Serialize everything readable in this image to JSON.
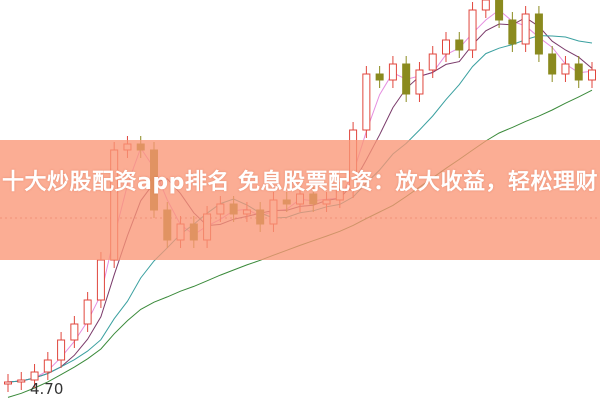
{
  "title": "十大炒股配资app排名 免息股票配资：放大收益，轻松理财",
  "chart_data": {
    "type": "candlestick",
    "price_tick_label": "4.70",
    "ylim": [
      4.68,
      6.65
    ],
    "up_color": "#e0463c",
    "down_color": "#8a8a1e",
    "ma_colors": [
      "#e58fe0",
      "#7a3a6a",
      "#3aa0a0",
      "#3a8a3a"
    ],
    "candles": [
      {
        "o": 4.73,
        "c": 4.74
      },
      {
        "o": 4.74,
        "c": 4.75
      },
      {
        "o": 4.75,
        "c": 4.79
      },
      {
        "o": 4.79,
        "c": 4.85
      },
      {
        "o": 4.85,
        "c": 4.95
      },
      {
        "o": 4.95,
        "c": 5.03
      },
      {
        "o": 5.03,
        "c": 5.15
      },
      {
        "o": 5.15,
        "c": 5.35
      },
      {
        "o": 5.35,
        "c": 5.9
      },
      {
        "o": 5.9,
        "c": 5.93
      },
      {
        "o": 5.93,
        "c": 5.9
      },
      {
        "o": 5.9,
        "c": 5.6
      },
      {
        "o": 5.6,
        "c": 5.45
      },
      {
        "o": 5.45,
        "c": 5.53
      },
      {
        "o": 5.53,
        "c": 5.45
      },
      {
        "o": 5.45,
        "c": 5.58
      },
      {
        "o": 5.58,
        "c": 5.63
      },
      {
        "o": 5.63,
        "c": 5.58
      },
      {
        "o": 5.58,
        "c": 5.6
      },
      {
        "o": 5.6,
        "c": 5.53
      },
      {
        "o": 5.53,
        "c": 5.65
      },
      {
        "o": 5.65,
        "c": 5.63
      },
      {
        "o": 5.63,
        "c": 5.68
      },
      {
        "o": 5.68,
        "c": 5.63
      },
      {
        "o": 5.63,
        "c": 5.65
      },
      {
        "o": 5.65,
        "c": 5.7
      },
      {
        "o": 5.7,
        "c": 6.0
      },
      {
        "o": 6.0,
        "c": 6.28
      },
      {
        "o": 6.28,
        "c": 6.25
      },
      {
        "o": 6.25,
        "c": 6.33
      },
      {
        "o": 6.33,
        "c": 6.18
      },
      {
        "o": 6.18,
        "c": 6.3
      },
      {
        "o": 6.3,
        "c": 6.38
      },
      {
        "o": 6.38,
        "c": 6.45
      },
      {
        "o": 6.45,
        "c": 6.4
      },
      {
        "o": 6.4,
        "c": 6.6
      },
      {
        "o": 6.6,
        "c": 6.65
      },
      {
        "o": 6.65,
        "c": 6.55
      },
      {
        "o": 6.55,
        "c": 6.43
      },
      {
        "o": 6.43,
        "c": 6.58
      },
      {
        "o": 6.58,
        "c": 6.38
      },
      {
        "o": 6.38,
        "c": 6.28
      },
      {
        "o": 6.28,
        "c": 6.33
      },
      {
        "o": 6.33,
        "c": 6.25
      },
      {
        "o": 6.25,
        "c": 6.3
      }
    ]
  }
}
